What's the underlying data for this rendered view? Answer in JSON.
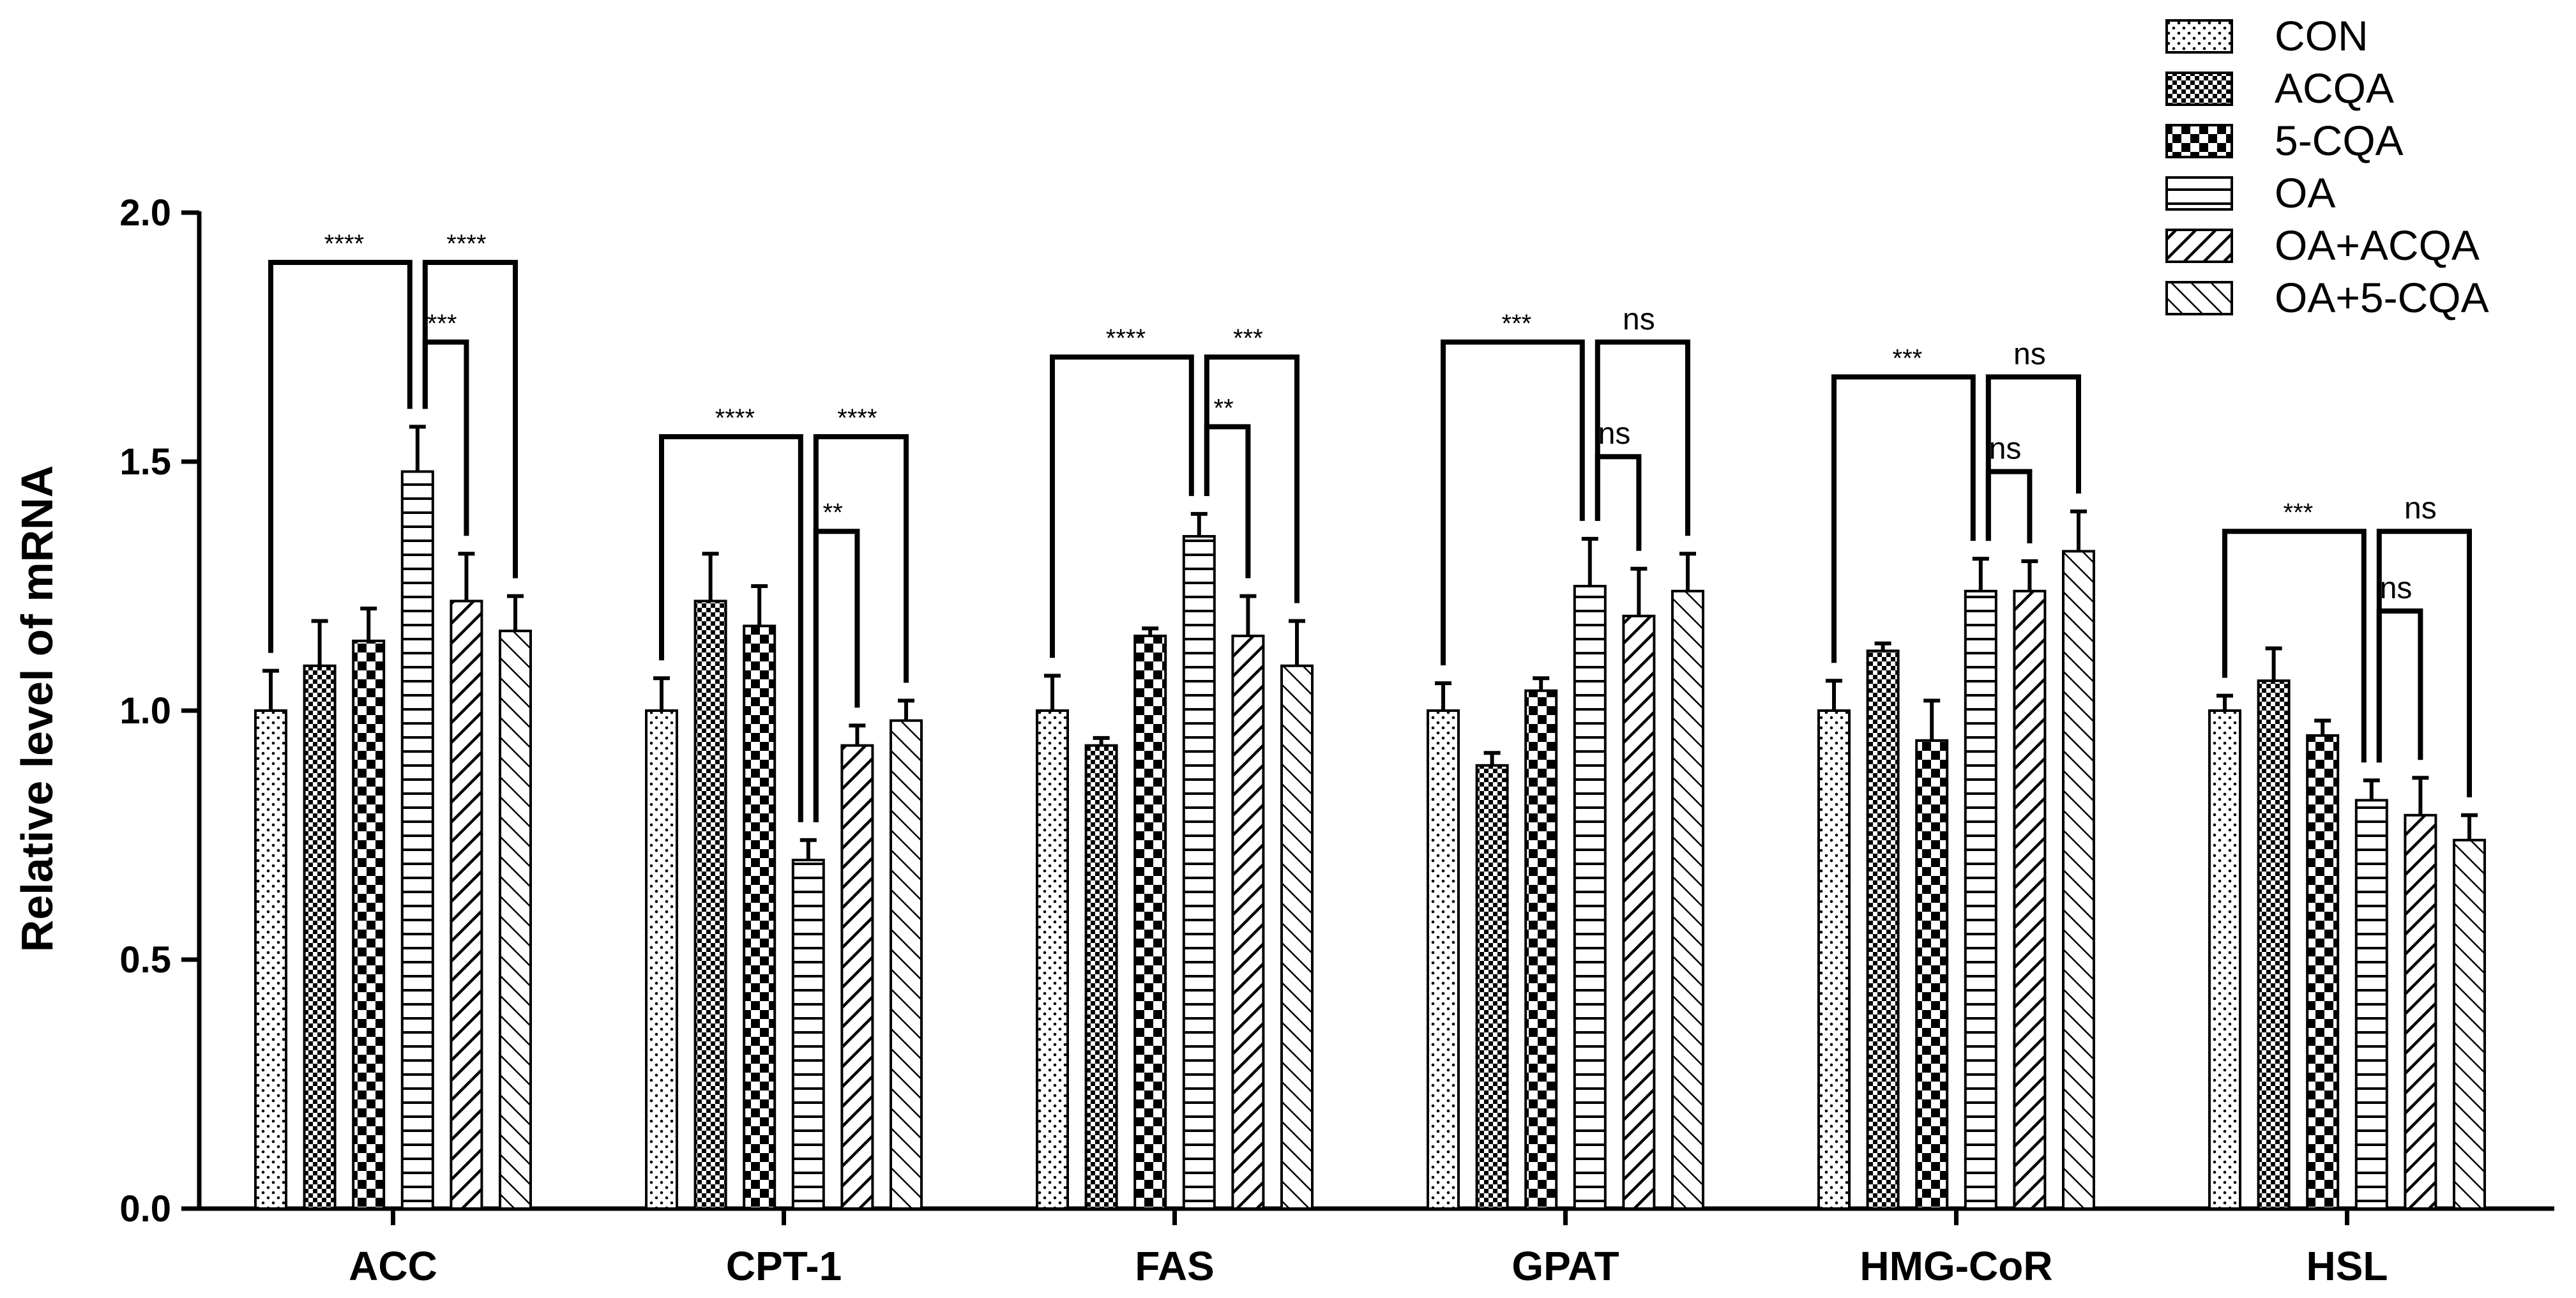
{
  "chart_data": {
    "type": "bar",
    "ylabel": "Relative level of mRNA",
    "xlabel": "",
    "ylim": [
      0,
      2.0
    ],
    "yticks": [
      "0.0",
      "0.5",
      "1.0",
      "1.5",
      "2.0"
    ],
    "categories": [
      "ACC",
      "CPT-1",
      "FAS",
      "GPAT",
      "HMG-CoR",
      "HSL"
    ],
    "series": [
      {
        "name": "CON",
        "pattern": "dots",
        "values": [
          1.0,
          1.0,
          1.0,
          1.0,
          1.0,
          1.0
        ],
        "errors": [
          0.08,
          0.065,
          0.07,
          0.055,
          0.06,
          0.03
        ]
      },
      {
        "name": "ACQA",
        "pattern": "checker-fine",
        "values": [
          1.09,
          1.22,
          0.93,
          0.89,
          1.12,
          1.06
        ],
        "errors": [
          0.09,
          0.095,
          0.015,
          0.025,
          0.015,
          0.065
        ]
      },
      {
        "name": "5-CQA",
        "pattern": "checker-coarse",
        "values": [
          1.14,
          1.17,
          1.15,
          1.04,
          0.94,
          0.95
        ],
        "errors": [
          0.065,
          0.08,
          0.015,
          0.025,
          0.08,
          0.03
        ]
      },
      {
        "name": "OA",
        "pattern": "horizontal",
        "values": [
          1.48,
          0.7,
          1.35,
          1.25,
          1.24,
          0.82
        ],
        "errors": [
          0.09,
          0.04,
          0.045,
          0.095,
          0.065,
          0.04
        ]
      },
      {
        "name": "OA+ACQA",
        "pattern": "diag-up",
        "values": [
          1.22,
          0.93,
          1.15,
          1.19,
          1.24,
          0.79
        ],
        "errors": [
          0.095,
          0.04,
          0.08,
          0.095,
          0.06,
          0.075
        ]
      },
      {
        "name": "OA+5-CQA",
        "pattern": "diag-down",
        "values": [
          1.16,
          0.98,
          1.09,
          1.24,
          1.32,
          0.74
        ],
        "errors": [
          0.07,
          0.04,
          0.09,
          0.075,
          0.08,
          0.05
        ]
      }
    ],
    "significance": [
      {
        "cat": 0,
        "from": 0,
        "to": 3,
        "y": 1.9,
        "label": "****"
      },
      {
        "cat": 0,
        "from": 3,
        "to": 5,
        "y": 1.9,
        "label": "****"
      },
      {
        "cat": 0,
        "from": 3,
        "to": 4,
        "y": 1.74,
        "label": "***"
      },
      {
        "cat": 1,
        "from": 0,
        "to": 3,
        "y": 1.55,
        "label": "****"
      },
      {
        "cat": 1,
        "from": 3,
        "to": 5,
        "y": 1.55,
        "label": "****"
      },
      {
        "cat": 1,
        "from": 3,
        "to": 4,
        "y": 1.36,
        "label": "**"
      },
      {
        "cat": 2,
        "from": 0,
        "to": 3,
        "y": 1.71,
        "label": "****"
      },
      {
        "cat": 2,
        "from": 3,
        "to": 5,
        "y": 1.71,
        "label": "***"
      },
      {
        "cat": 2,
        "from": 3,
        "to": 4,
        "y": 1.57,
        "label": "**"
      },
      {
        "cat": 3,
        "from": 0,
        "to": 3,
        "y": 1.74,
        "label": "***"
      },
      {
        "cat": 3,
        "from": 3,
        "to": 5,
        "y": 1.74,
        "label": "ns"
      },
      {
        "cat": 3,
        "from": 3,
        "to": 4,
        "y": 1.51,
        "label": "ns"
      },
      {
        "cat": 4,
        "from": 0,
        "to": 3,
        "y": 1.67,
        "label": "***"
      },
      {
        "cat": 4,
        "from": 3,
        "to": 5,
        "y": 1.67,
        "label": "ns"
      },
      {
        "cat": 4,
        "from": 3,
        "to": 4,
        "y": 1.48,
        "label": "ns"
      },
      {
        "cat": 5,
        "from": 0,
        "to": 3,
        "y": 1.36,
        "label": "***"
      },
      {
        "cat": 5,
        "from": 3,
        "to": 5,
        "y": 1.36,
        "label": "ns"
      },
      {
        "cat": 5,
        "from": 3,
        "to": 4,
        "y": 1.2,
        "label": "ns"
      }
    ],
    "legend_position": "top-right"
  }
}
